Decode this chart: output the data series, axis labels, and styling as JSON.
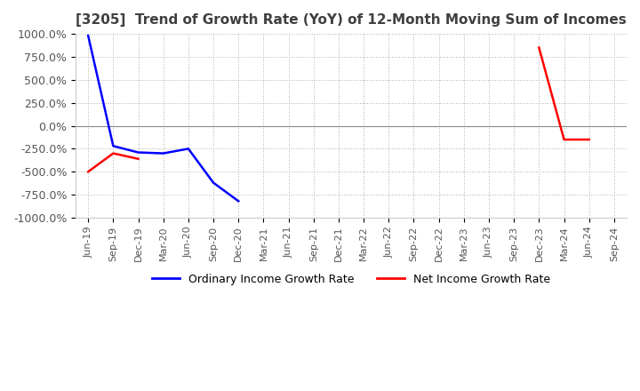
{
  "title": "[3205]  Trend of Growth Rate (YoY) of 12-Month Moving Sum of Incomes",
  "ylim": [
    -1000,
    1000
  ],
  "yticks": [
    1000,
    750,
    500,
    250,
    0,
    -250,
    -500,
    -750,
    -1000
  ],
  "ytick_labels": [
    "1000.0%",
    "750.0%",
    "500.0%",
    "250.0%",
    "0.0%",
    "-250.0%",
    "-500.0%",
    "-750.0%",
    "-1000.0%"
  ],
  "x_labels": [
    "Jun-19",
    "Sep-19",
    "Dec-19",
    "Mar-20",
    "Jun-20",
    "Sep-20",
    "Dec-20",
    "Mar-21",
    "Jun-21",
    "Sep-21",
    "Dec-21",
    "Mar-22",
    "Jun-22",
    "Sep-22",
    "Dec-22",
    "Mar-23",
    "Jun-23",
    "Sep-23",
    "Dec-23",
    "Mar-24",
    "Jun-24",
    "Sep-24"
  ],
  "ordinary_income": [
    980,
    -220,
    -290,
    -300,
    -250,
    -620,
    -820,
    null,
    null,
    null,
    null,
    null,
    null,
    null,
    null,
    null,
    null,
    null,
    null,
    null,
    null,
    null
  ],
  "net_income": [
    -500,
    -300,
    -360,
    null,
    null,
    null,
    null,
    null,
    null,
    null,
    null,
    null,
    null,
    null,
    null,
    null,
    null,
    null,
    850,
    -150,
    -150,
    null
  ],
  "ordinary_color": "#0000FF",
  "net_color": "#FF0000",
  "background_color": "#FFFFFF",
  "grid_color": "#AAAAAA",
  "title_color": "#404040",
  "legend_labels": [
    "Ordinary Income Growth Rate",
    "Net Income Growth Rate"
  ]
}
